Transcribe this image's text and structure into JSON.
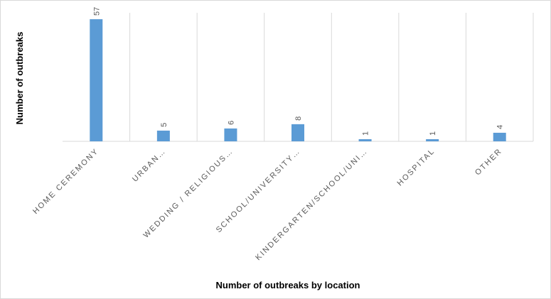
{
  "chart_data": {
    "type": "bar",
    "x_label": "Number of outbreaks by location",
    "y_label": "Number of outbreaks",
    "categories": [
      "HOME CEREMONY",
      "URBAN…",
      "WEDDING / RELIGIOUS…",
      "SCHOOL/UNIVERSITY…",
      "KINDERGARTEN/SCHOOL/UNI…",
      "HOSPITAL",
      "OTHER"
    ],
    "values": [
      57,
      5,
      6,
      8,
      1,
      1,
      4
    ],
    "color": "#5b9bd5",
    "ylim": [
      0,
      60
    ]
  }
}
